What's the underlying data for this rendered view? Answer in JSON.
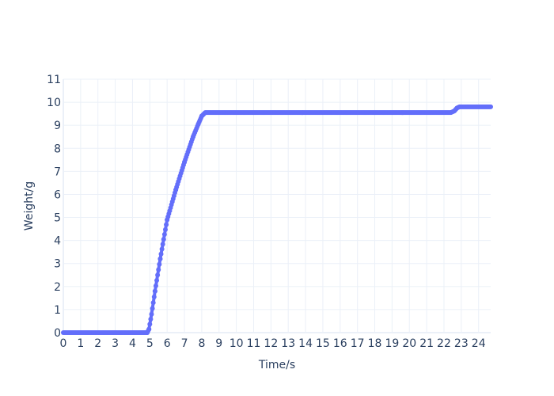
{
  "chart_data": {
    "type": "scatter",
    "title": "",
    "xlabel": "Time/s",
    "ylabel": "Weight/g",
    "xlim": [
      0,
      24.7
    ],
    "ylim": [
      0,
      11
    ],
    "x_ticks": [
      "0",
      "1",
      "2",
      "3",
      "4",
      "5",
      "6",
      "7",
      "8",
      "9",
      "10",
      "11",
      "12",
      "13",
      "14",
      "15",
      "16",
      "17",
      "18",
      "19",
      "20",
      "21",
      "22",
      "23",
      "24"
    ],
    "y_ticks": [
      "0",
      "1",
      "2",
      "3",
      "4",
      "5",
      "6",
      "7",
      "8",
      "9",
      "10",
      "11"
    ],
    "grid": true,
    "legend": "none",
    "series": [
      {
        "color": "#636efa",
        "mode": "lines+markers",
        "x": [
          0,
          4.85,
          4.95,
          5.1,
          5.3,
          5.6,
          6.0,
          6.5,
          7.0,
          7.5,
          7.8,
          8.0,
          8.2,
          8.4,
          22.4,
          22.6,
          22.75,
          22.9,
          24.7
        ],
        "y": [
          0,
          0,
          0.15,
          0.8,
          1.8,
          3.2,
          4.9,
          6.2,
          7.4,
          8.5,
          9.05,
          9.4,
          9.55,
          9.55,
          9.55,
          9.62,
          9.75,
          9.8,
          9.8
        ]
      }
    ]
  }
}
